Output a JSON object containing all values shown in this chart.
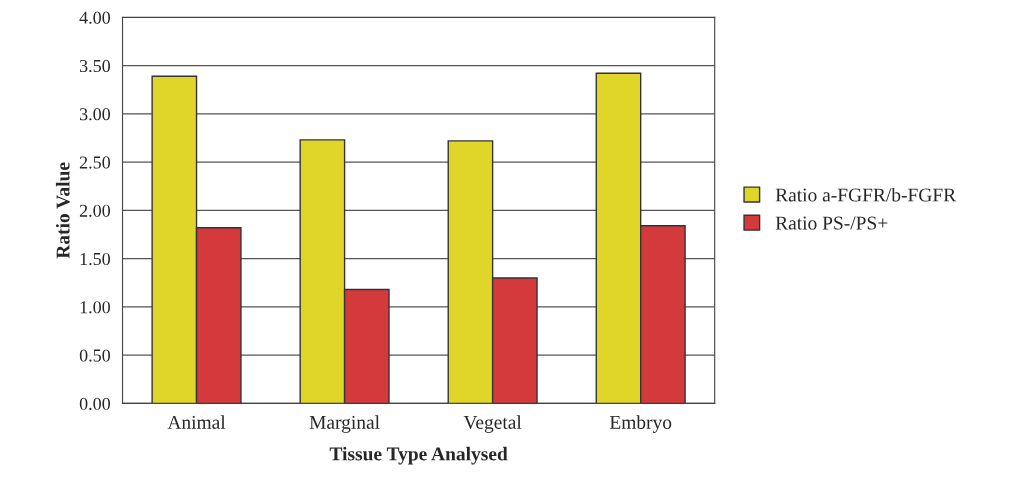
{
  "chart_data": {
    "type": "bar",
    "xlabel": "Tissue Type Analysed",
    "ylabel": "Ratio Value",
    "categories": [
      "Animal",
      "Marginal",
      "Vegetal",
      "Embryo"
    ],
    "series": [
      {
        "name": "Ratio a-FGFR/b-FGFR",
        "color": "#e0d62a",
        "values": [
          3.39,
          2.73,
          2.72,
          3.42
        ]
      },
      {
        "name": "Ratio PS-/PS+",
        "color": "#d43a3c",
        "values": [
          1.82,
          1.18,
          1.3,
          1.84
        ]
      }
    ],
    "ylim": [
      0,
      4
    ],
    "yticks": [
      {
        "value": 0,
        "label": "0.00"
      },
      {
        "value": 0.5,
        "label": "0.50"
      },
      {
        "value": 1,
        "label": "1.00"
      },
      {
        "value": 1.5,
        "label": "1.50"
      },
      {
        "value": 2,
        "label": "2.00"
      },
      {
        "value": 2.5,
        "label": "2.50"
      },
      {
        "value": 3,
        "label": "3.00"
      },
      {
        "value": 3.5,
        "label": "3.50"
      },
      {
        "value": 4,
        "label": "4.00"
      }
    ],
    "grid": "y",
    "legend": "right"
  }
}
